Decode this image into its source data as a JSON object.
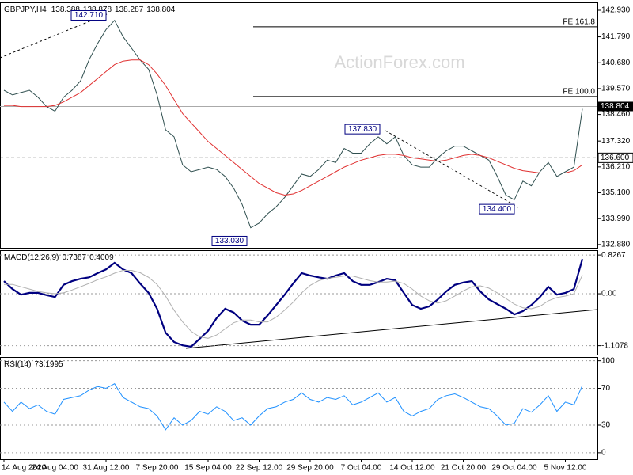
{
  "chart_data": [
    {
      "type": "line",
      "title": "GBPJPY,H4",
      "ohlc": [
        138.388,
        138.878,
        138.287,
        138.804
      ],
      "watermark": "ActionForex.com",
      "categories": [
        "14 Aug 2020",
        null,
        null,
        null,
        null,
        null,
        "24 Aug 04:00",
        null,
        null,
        null,
        null,
        null,
        "31 Aug 12:00",
        null,
        null,
        null,
        null,
        null,
        "7 Sep 20:00",
        null,
        null,
        null,
        null,
        null,
        "15 Sep 04:00",
        null,
        null,
        null,
        null,
        null,
        "22 Sep 12:00",
        null,
        null,
        null,
        null,
        null,
        "29 Sep 20:00",
        null,
        null,
        null,
        null,
        null,
        "7 Oct 04:00",
        null,
        null,
        null,
        null,
        null,
        "14 Oct 12:00",
        null,
        null,
        null,
        null,
        null,
        "21 Oct 20:00",
        null,
        null,
        null,
        null,
        null,
        "29 Oct 04:00",
        null,
        null,
        null,
        null,
        null,
        "5 Nov 12:00",
        null,
        null
      ],
      "series": [
        {
          "color": "#2f4f4f",
          "values": [
            139.5,
            139.3,
            139.4,
            139.5,
            139.2,
            138.8,
            138.6,
            139.2,
            139.5,
            139.9,
            140.8,
            141.5,
            142.1,
            142.5,
            141.8,
            141.3,
            140.8,
            140.4,
            139.3,
            137.8,
            137.5,
            136.3,
            136.0,
            136.1,
            136.2,
            136.1,
            135.8,
            135.3,
            134.6,
            133.6,
            133.8,
            134.2,
            134.5,
            134.9,
            135.4,
            135.9,
            135.8,
            136.1,
            136.5,
            136.4,
            137.0,
            136.8,
            136.8,
            137.2,
            137.5,
            137.2,
            137.5,
            136.7,
            136.3,
            136.2,
            136.2,
            136.6,
            136.9,
            137.1,
            137.1,
            136.9,
            136.7,
            136.5,
            135.8,
            135.0,
            134.8,
            135.6,
            135.4,
            136.0,
            136.4,
            135.8,
            136.0,
            136.2,
            138.7
          ]
        },
        {
          "color": "#e03030",
          "values": [
            138.85,
            138.85,
            138.8,
            138.8,
            138.8,
            138.8,
            138.85,
            139.0,
            139.2,
            139.4,
            139.7,
            140.0,
            140.3,
            140.6,
            140.75,
            140.8,
            140.8,
            140.6,
            140.2,
            139.7,
            139.1,
            138.5,
            138.1,
            137.7,
            137.3,
            137.0,
            136.7,
            136.4,
            136.1,
            135.8,
            135.5,
            135.3,
            135.1,
            135.0,
            135.05,
            135.2,
            135.4,
            135.6,
            135.8,
            136.0,
            136.2,
            136.35,
            136.5,
            136.6,
            136.7,
            136.75,
            136.75,
            136.7,
            136.6,
            136.55,
            136.5,
            136.45,
            136.5,
            136.6,
            136.7,
            136.75,
            136.7,
            136.6,
            136.45,
            136.3,
            136.15,
            136.05,
            136.0,
            135.95,
            135.95,
            135.95,
            135.95,
            136.05,
            136.3
          ]
        }
      ],
      "ylim": [
        132.74,
        143.27
      ],
      "yticks": [
        {
          "value": 142.93,
          "label": "142.930"
        },
        {
          "value": 141.79,
          "label": "141.790"
        },
        {
          "value": 140.68,
          "label": "140.680"
        },
        {
          "value": 139.57,
          "label": "139.570"
        },
        {
          "value": 138.46,
          "label": "138.460"
        },
        {
          "value": 137.32,
          "label": "137.320"
        },
        {
          "value": 136.21,
          "label": "136.210"
        },
        {
          "value": 135.1,
          "label": "135.100"
        },
        {
          "value": 133.99,
          "label": "133.990"
        },
        {
          "value": 132.88,
          "label": "132.880"
        }
      ],
      "grid": false,
      "levels": [
        {
          "label": "FE 161.8",
          "value": 142.22
        },
        {
          "label": "FE 100.0",
          "value": 139.23
        }
      ],
      "support": {
        "value": 136.6,
        "label": "136.600"
      },
      "current": {
        "value": 138.804,
        "label": "138.804"
      },
      "annotations": [
        {
          "value": 142.71,
          "label": "142.710"
        },
        {
          "value": 137.83,
          "label": "137.830"
        },
        {
          "value": 134.4,
          "label": "134.400"
        },
        {
          "value": 133.03,
          "label": "133.030"
        }
      ]
    },
    {
      "type": "line",
      "title": "MACD(12,26,9)",
      "readout": [
        0.7387,
        0.4009
      ],
      "series": [
        {
          "color": "#000080",
          "values": [
            0.27,
            0.1,
            -0.02,
            0.02,
            0.02,
            -0.03,
            -0.07,
            0.19,
            0.27,
            0.32,
            0.35,
            0.44,
            0.52,
            0.66,
            0.52,
            0.44,
            0.22,
            0.02,
            -0.32,
            -0.83,
            -1.03,
            -1.1,
            -1.13,
            -0.96,
            -0.79,
            -0.52,
            -0.32,
            -0.4,
            -0.57,
            -0.66,
            -0.66,
            -0.46,
            -0.24,
            -0.02,
            0.22,
            0.44,
            0.39,
            0.35,
            0.32,
            0.39,
            0.44,
            0.27,
            0.19,
            0.19,
            0.25,
            0.32,
            0.29,
            0.02,
            -0.24,
            -0.32,
            -0.27,
            -0.12,
            0.05,
            0.19,
            0.24,
            0.27,
            0.05,
            -0.12,
            -0.22,
            -0.32,
            -0.44,
            -0.37,
            -0.24,
            -0.07,
            0.15,
            -0.02,
            0.02,
            0.1,
            0.74
          ]
        },
        {
          "color": "#b0b0b0",
          "values": [
            0.2,
            0.2,
            0.15,
            0.1,
            0.05,
            0.02,
            0.0,
            0.02,
            0.08,
            0.15,
            0.22,
            0.3,
            0.36,
            0.44,
            0.5,
            0.5,
            0.45,
            0.35,
            0.2,
            -0.05,
            -0.35,
            -0.6,
            -0.8,
            -0.92,
            -0.95,
            -0.88,
            -0.75,
            -0.62,
            -0.56,
            -0.56,
            -0.6,
            -0.6,
            -0.5,
            -0.35,
            -0.18,
            0.02,
            0.18,
            0.28,
            0.33,
            0.35,
            0.38,
            0.38,
            0.33,
            0.28,
            0.25,
            0.25,
            0.27,
            0.22,
            0.1,
            -0.05,
            -0.15,
            -0.2,
            -0.15,
            -0.05,
            0.06,
            0.15,
            0.17,
            0.12,
            0.02,
            -0.1,
            -0.22,
            -0.3,
            -0.32,
            -0.27,
            -0.15,
            -0.08,
            -0.05,
            0.0,
            0.4
          ]
        }
      ],
      "ylim": [
        -1.3,
        0.93
      ],
      "yticks": [
        0.8267,
        {
          "value": 0,
          "label": "0.00"
        },
        -1.1078
      ],
      "grid": true
    },
    {
      "type": "line",
      "title": "RSI(14)",
      "readout": [
        73.1995
      ],
      "series": [
        {
          "color": "#1e90ff",
          "values": [
            55,
            45,
            55,
            48,
            52,
            45,
            42,
            58,
            60,
            62,
            68,
            72,
            70,
            75,
            60,
            55,
            50,
            48,
            40,
            25,
            38,
            30,
            35,
            45,
            42,
            50,
            45,
            35,
            38,
            30,
            40,
            48,
            50,
            55,
            58,
            65,
            58,
            55,
            60,
            58,
            62,
            52,
            55,
            60,
            65,
            55,
            60,
            45,
            40,
            45,
            48,
            58,
            62,
            64,
            60,
            55,
            50,
            48,
            40,
            30,
            32,
            48,
            44,
            52,
            62,
            45,
            55,
            52,
            73.2
          ]
        }
      ],
      "ylim": [
        -7,
        104
      ],
      "yticks": [
        100,
        70,
        30,
        0
      ],
      "grid": true
    }
  ]
}
